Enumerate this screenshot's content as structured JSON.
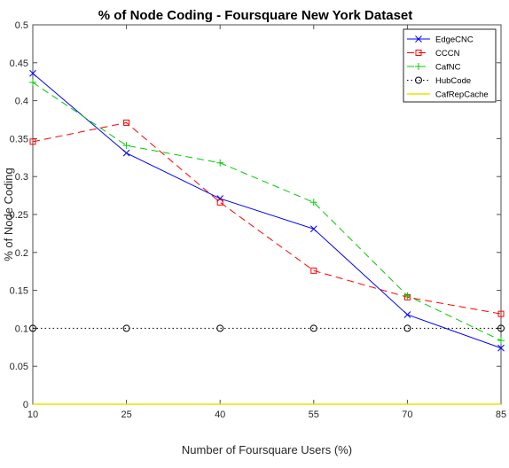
{
  "chart_data": {
    "type": "line",
    "title": "% of Node Coding - Foursquare New York Dataset",
    "xlabel": "Number of Foursquare Users (%)",
    "ylabel": "% of Node Coding",
    "x": [
      10,
      25,
      40,
      55,
      70,
      85
    ],
    "xlim": [
      10,
      85
    ],
    "ylim": [
      0,
      0.5
    ],
    "xticks": [
      "10",
      "25",
      "40",
      "55",
      "70",
      "85"
    ],
    "yticks": [
      "0",
      "0.05",
      "0.1",
      "0.15",
      "0.2",
      "0.25",
      "0.3",
      "0.35",
      "0.4",
      "0.45",
      "0.5"
    ],
    "grid": false,
    "legend_position": "top-right",
    "series": [
      {
        "name": "EdgeCNC",
        "values": [
          0.436,
          0.331,
          0.271,
          0.231,
          0.118,
          0.074
        ],
        "color": "#0000ff",
        "line_style": "solid",
        "marker": "x"
      },
      {
        "name": "CCCN",
        "values": [
          0.346,
          0.371,
          0.266,
          0.176,
          0.141,
          0.119
        ],
        "color": "#ff0000",
        "line_style": "dashed",
        "marker": "square"
      },
      {
        "name": "CafNC",
        "values": [
          0.424,
          0.341,
          0.318,
          0.266,
          0.143,
          0.084
        ],
        "color": "#00cc00",
        "line_style": "dashed",
        "marker": "plus"
      },
      {
        "name": "HubCode",
        "values": [
          0.1,
          0.1,
          0.1,
          0.1,
          0.1,
          0.1
        ],
        "color": "#000000",
        "line_style": "dotted",
        "marker": "circle"
      },
      {
        "name": "CafRepCache",
        "values": [
          0,
          0,
          0,
          0,
          0,
          0
        ],
        "color": "#e6e600",
        "line_style": "solid",
        "marker": "none"
      }
    ]
  }
}
